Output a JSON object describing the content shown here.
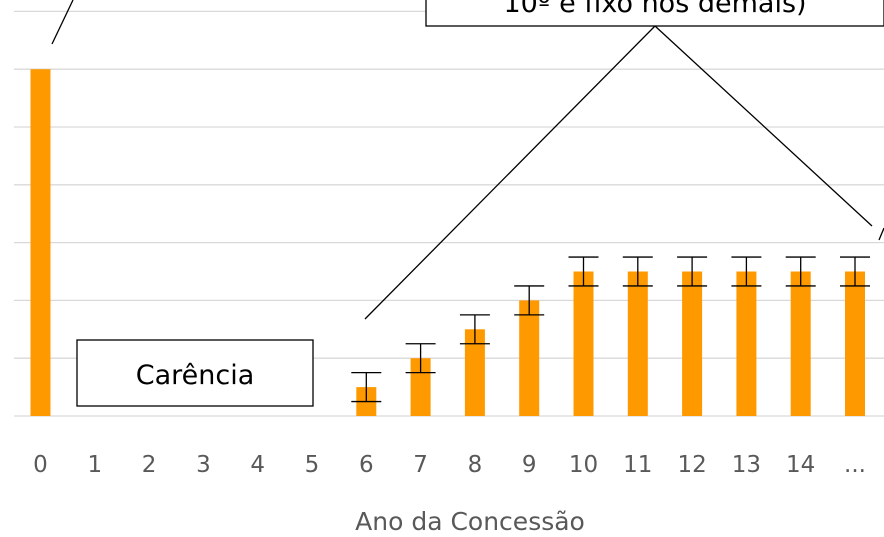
{
  "chart_data": {
    "type": "bar",
    "categories": [
      "0",
      "1",
      "2",
      "3",
      "4",
      "5",
      "6",
      "7",
      "8",
      "9",
      "10",
      "11",
      "12",
      "13",
      "14",
      "..."
    ],
    "values": [
      12,
      0,
      0,
      0,
      0,
      0,
      1,
      2,
      3,
      4,
      5,
      5,
      5,
      5,
      5,
      5
    ],
    "error_bars": [
      null,
      null,
      null,
      null,
      null,
      null,
      0.5,
      0.5,
      0.5,
      0.5,
      0.5,
      0.5,
      0.5,
      0.5,
      0.5,
      0.5
    ],
    "xlabel": "Ano da Concessão",
    "ylabel": "",
    "ylim": [
      0,
      14
    ],
    "grid": true,
    "bar_color": "#FF9900",
    "gridline_color": "#D9D9D9",
    "annotations": [
      {
        "text": "Carência",
        "type": "callout-box"
      },
      {
        "text": "10º e fixo nos demais)",
        "type": "callout-box-clipped"
      }
    ]
  }
}
